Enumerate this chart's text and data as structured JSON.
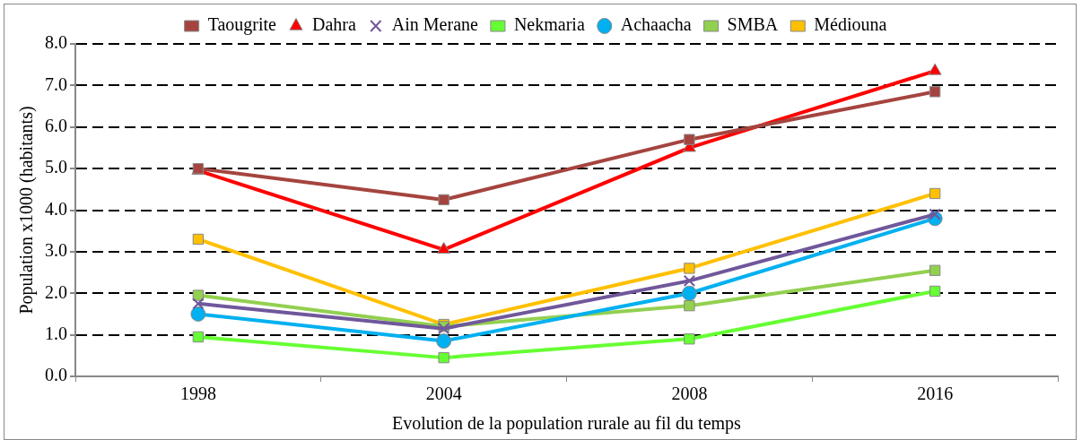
{
  "chart_data": {
    "type": "line",
    "xlabel": "Evolution de la population rurale au fil du temps",
    "ylabel": "Population x1000 (habitants)",
    "categories": [
      "1998",
      "2004",
      "2008",
      "2016"
    ],
    "series": [
      {
        "name": "Taougrite",
        "color": "#a5443f",
        "marker": "square",
        "values": [
          5.0,
          4.25,
          5.7,
          6.85
        ]
      },
      {
        "name": "Dahra",
        "color": "#ff0000",
        "marker": "triangle",
        "values": [
          4.95,
          3.05,
          5.5,
          7.35
        ]
      },
      {
        "name": "Ain Merane",
        "color": "#70579b",
        "marker": "cross",
        "values": [
          1.75,
          1.15,
          2.3,
          3.9
        ]
      },
      {
        "name": "Nekmaria",
        "color": "#66ff33",
        "marker": "square",
        "values": [
          0.95,
          0.45,
          0.9,
          2.05
        ]
      },
      {
        "name": "Achaacha",
        "color": "#00b0f0",
        "marker": "circle",
        "values": [
          1.5,
          0.85,
          2.0,
          3.8
        ]
      },
      {
        "name": "SMBA",
        "color": "#92d050",
        "marker": "square",
        "values": [
          1.95,
          1.2,
          1.7,
          2.55
        ]
      },
      {
        "name": "Médiouna",
        "color": "#ffc000",
        "marker": "square",
        "values": [
          3.3,
          1.25,
          2.6,
          4.4
        ]
      }
    ],
    "ylim": [
      0,
      8
    ],
    "yticks": [
      {
        "value": 0,
        "label": "0.0"
      },
      {
        "value": 1,
        "label": "1.0"
      },
      {
        "value": 2,
        "label": "2.0"
      },
      {
        "value": 3,
        "label": "3.0"
      },
      {
        "value": 4,
        "label": "4.0"
      },
      {
        "value": 5,
        "label": "5.0"
      },
      {
        "value": 6,
        "label": "6.0"
      },
      {
        "value": 7,
        "label": "7.0"
      },
      {
        "value": 8,
        "label": "8.0"
      }
    ],
    "grid": "y",
    "legend": "top",
    "line_style": "solid"
  }
}
